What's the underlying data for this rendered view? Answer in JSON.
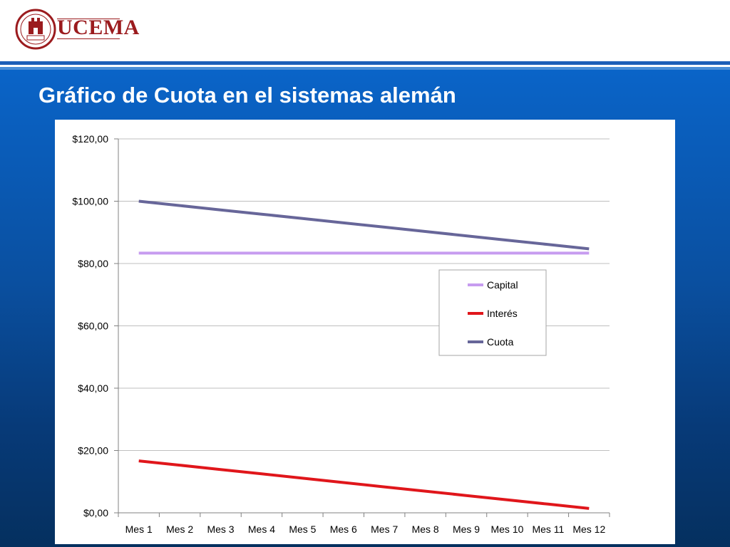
{
  "header": {
    "logo_text": "UCEMA",
    "seal_text": "UNIVERSIDAD DEL CEMA · MCMXCVIII"
  },
  "slide": {
    "title": "Gráfico de Cuota en el sistemas alemán"
  },
  "colors": {
    "capital": "#c79cf0",
    "interes": "#e0161b",
    "cuota": "#676699",
    "brand": "#9b1b1e",
    "background": "#0a4f9f"
  },
  "chart_data": {
    "type": "line",
    "title": "",
    "xlabel": "",
    "ylabel": "",
    "categories": [
      "Mes 1",
      "Mes 2",
      "Mes 3",
      "Mes 4",
      "Mes 5",
      "Mes 6",
      "Mes 7",
      "Mes 8",
      "Mes 9",
      "Mes 10",
      "Mes 11",
      "Mes 12"
    ],
    "ylim": [
      0,
      120
    ],
    "yticks": [
      0,
      20,
      40,
      60,
      80,
      100,
      120
    ],
    "ytick_labels": [
      "$0,00",
      "$20,00",
      "$40,00",
      "$60,00",
      "$80,00",
      "$100,00",
      "$120,00"
    ],
    "grid": true,
    "legend_position": "right",
    "series": [
      {
        "name": "Capital",
        "color": "#c79cf0",
        "values": [
          83.33,
          83.33,
          83.33,
          83.33,
          83.33,
          83.33,
          83.33,
          83.33,
          83.33,
          83.33,
          83.33,
          83.33
        ]
      },
      {
        "name": "Interés",
        "color": "#e0161b",
        "values": [
          16.67,
          15.28,
          13.89,
          12.5,
          11.11,
          9.72,
          8.33,
          6.94,
          5.56,
          4.17,
          2.78,
          1.39
        ]
      },
      {
        "name": "Cuota",
        "color": "#676699",
        "values": [
          100.0,
          98.61,
          97.22,
          95.83,
          94.44,
          93.06,
          91.67,
          90.28,
          88.89,
          87.5,
          86.11,
          84.72
        ]
      }
    ]
  }
}
